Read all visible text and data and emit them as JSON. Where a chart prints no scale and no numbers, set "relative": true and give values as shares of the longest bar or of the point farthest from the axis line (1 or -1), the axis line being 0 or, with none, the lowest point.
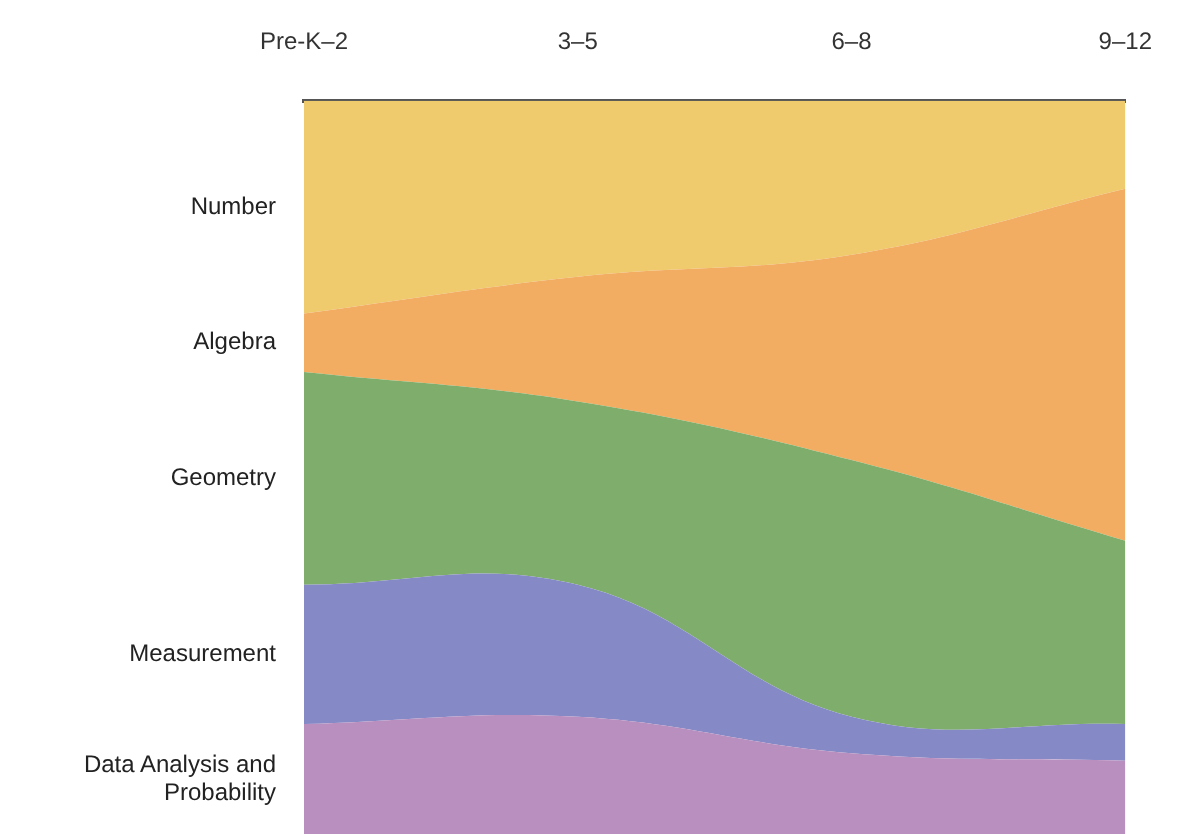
{
  "chart_data": {
    "type": "area",
    "stacked": true,
    "relative": true,
    "categories": [
      "Pre-K–2",
      "3–5",
      "6–8",
      "9–12"
    ],
    "series": [
      {
        "name": "Data Analysis and Probability",
        "color": "#b98fbf",
        "values": [
          0.15,
          0.16,
          0.11,
          0.1
        ]
      },
      {
        "name": "Measurement",
        "color": "#8589c6",
        "values": [
          0.19,
          0.18,
          0.05,
          0.05
        ]
      },
      {
        "name": "Geometry",
        "color": "#7fae6c",
        "values": [
          0.29,
          0.25,
          0.35,
          0.25
        ]
      },
      {
        "name": "Algebra",
        "color": "#f3ad62",
        "values": [
          0.08,
          0.17,
          0.28,
          0.48
        ]
      },
      {
        "name": "Number",
        "color": "#efcb6e",
        "values": [
          0.29,
          0.24,
          0.21,
          0.12
        ]
      }
    ]
  }
}
